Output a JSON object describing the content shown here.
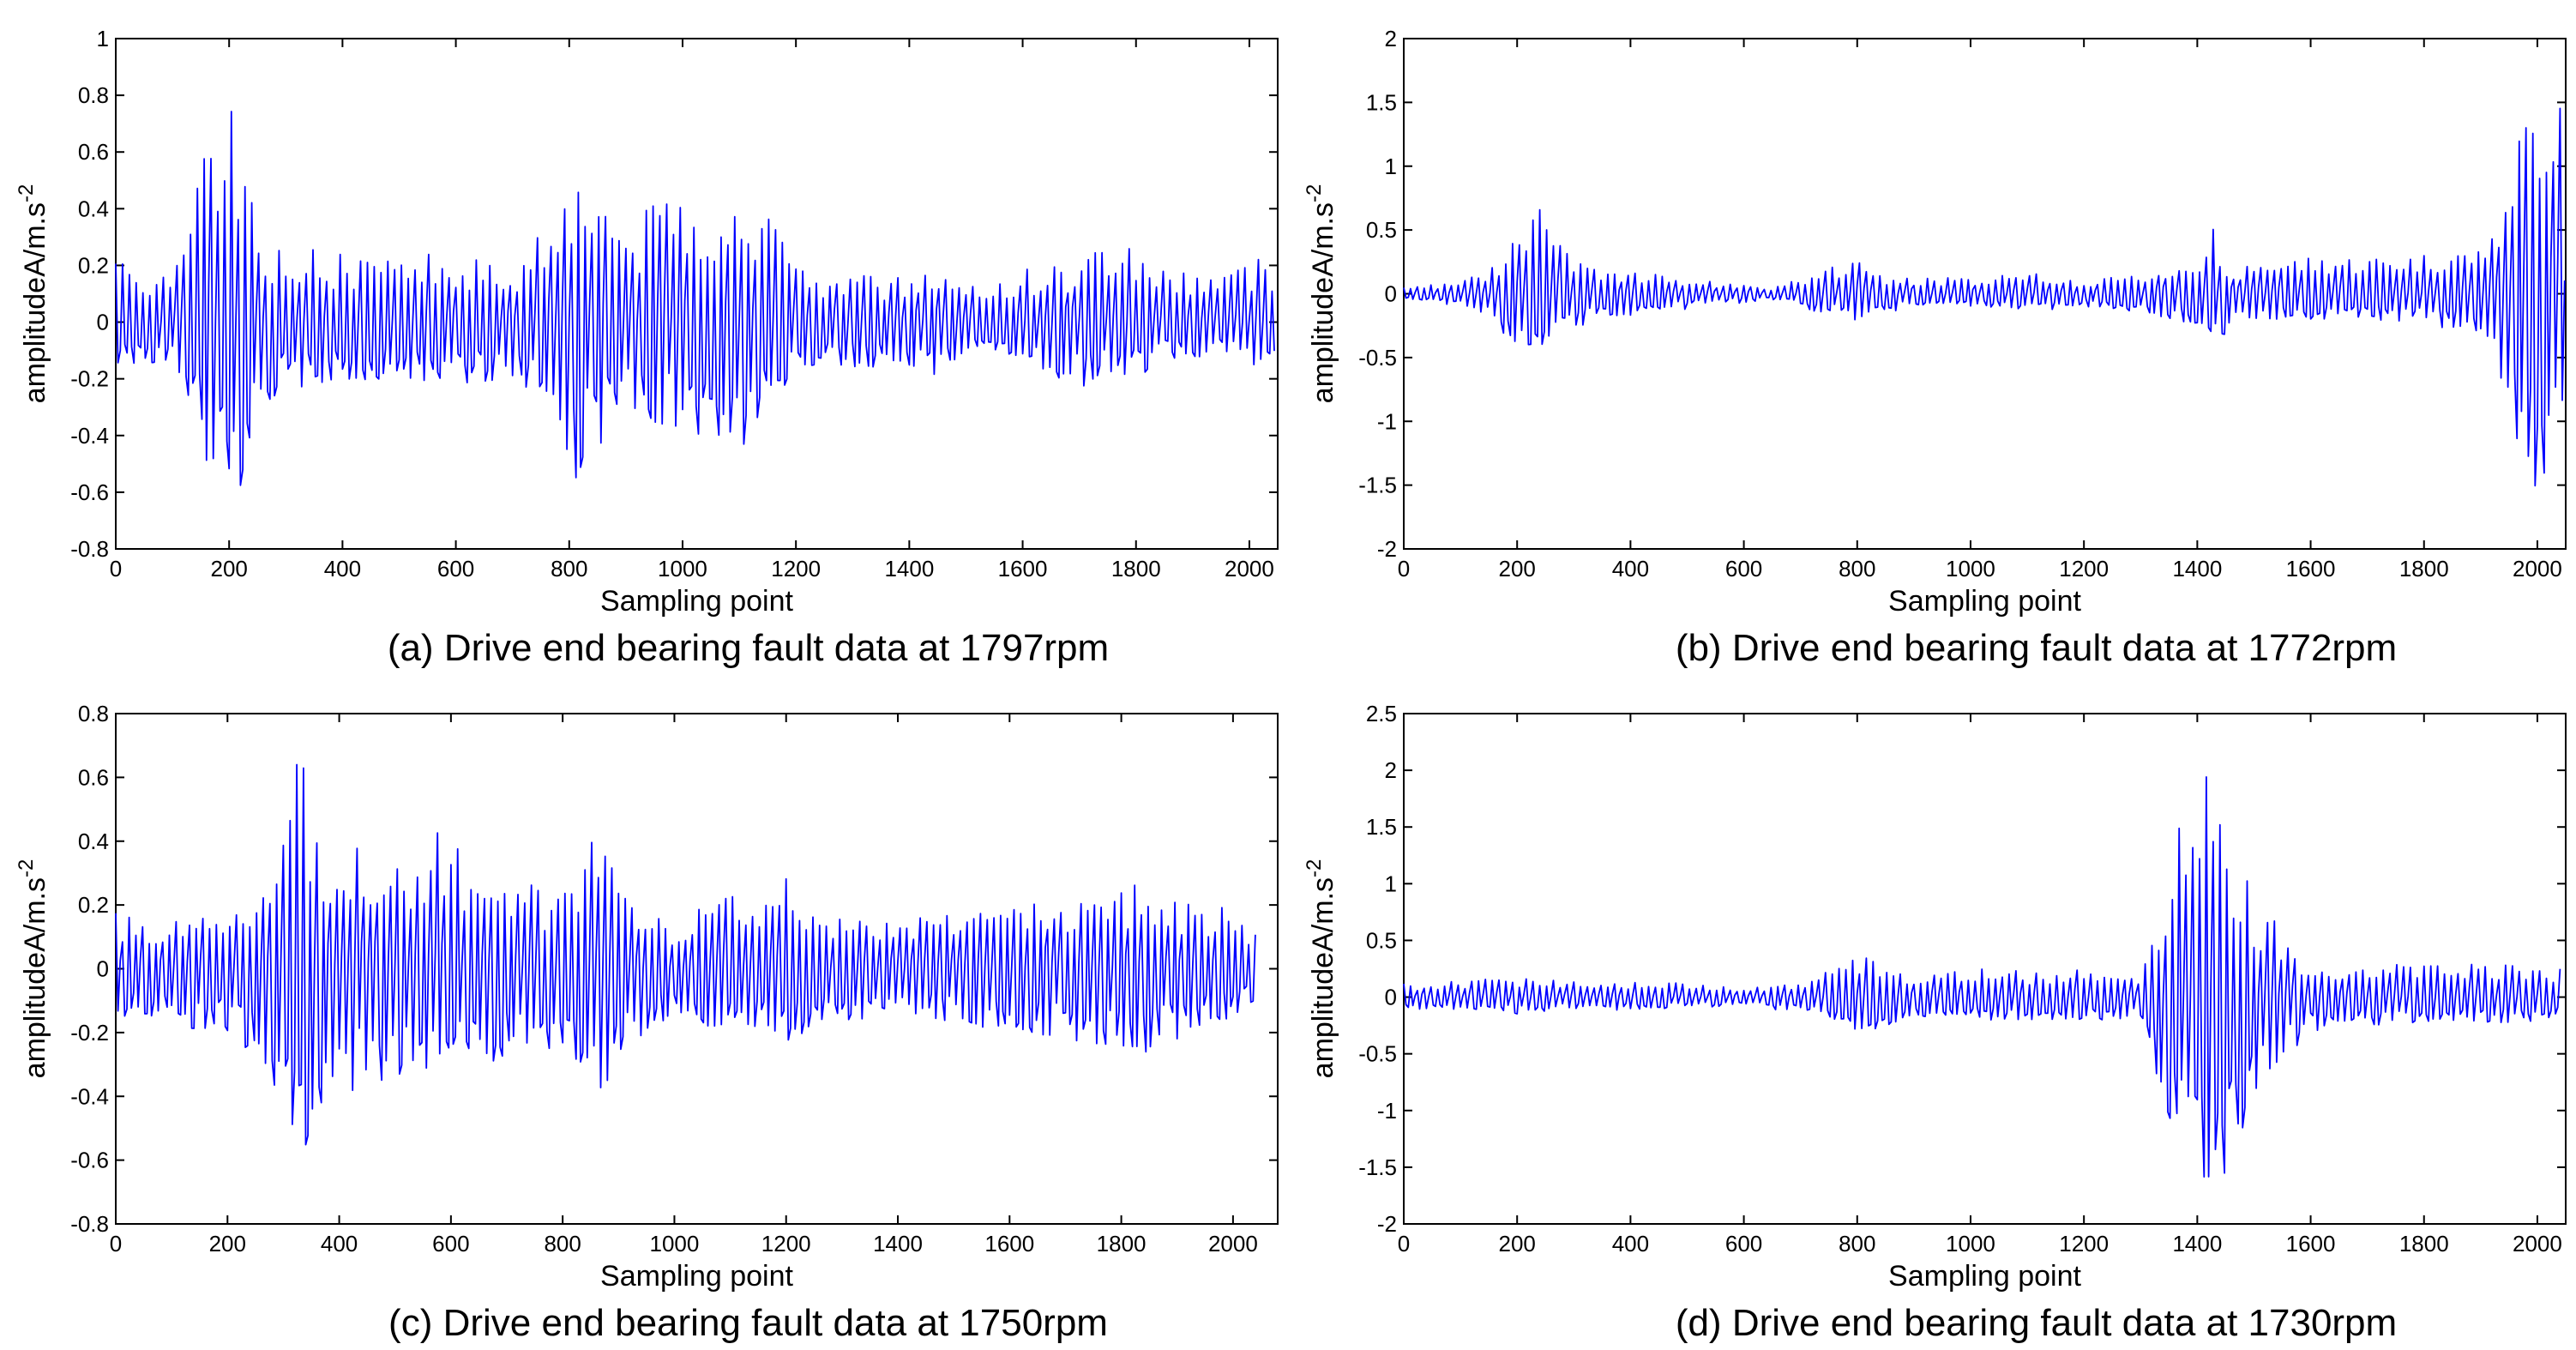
{
  "chart_data": [
    {
      "type": "line",
      "caption": "(a) Drive end bearing fault data at 1797rpm",
      "xlabel": "Sampling point",
      "ylabel_main": "amplitudeA/m.s",
      "ylabel_sup": "-2",
      "xlim": [
        0,
        2050
      ],
      "ylim": [
        -0.8,
        1
      ],
      "xticks": [
        "0",
        "200",
        "400",
        "600",
        "800",
        "1000",
        "1200",
        "1400",
        "1600",
        "1800",
        "2000"
      ],
      "yticks": [
        "-0.8",
        "-0.6",
        "-0.4",
        "-0.2",
        "0",
        "0.2",
        "0.4",
        "0.6",
        "0.8",
        "1"
      ],
      "grid": false,
      "line_color": "#0000ff",
      "series": [
        {
          "x": [
            0,
            60,
            100,
            150,
            170,
            190,
            210,
            230,
            250,
            300,
            400,
            500,
            600,
            700,
            760,
            790,
            800,
            830,
            850,
            880,
            920,
            970,
            1000,
            1050,
            1110,
            1150,
            1200,
            1250,
            1350,
            1450,
            1500,
            1600,
            1700,
            1750,
            1800,
            1850,
            1950,
            2000,
            2030,
            2045
          ],
          "y": [
            0.22,
            0.2,
            0.18,
            0.62,
            0.7,
            0.6,
            0.83,
            0.62,
            0.3,
            0.28,
            0.24,
            0.22,
            0.26,
            0.2,
            0.4,
            0.55,
            0.6,
            0.5,
            0.62,
            0.4,
            0.35,
            0.55,
            0.5,
            0.45,
            0.43,
            0.38,
            0.2,
            0.18,
            0.16,
            0.2,
            0.12,
            0.2,
            0.22,
            0.33,
            0.3,
            0.2,
            0.2,
            0.22,
            0.28,
            0.1
          ]
        },
        {
          "x": [
            0,
            60,
            100,
            150,
            170,
            190,
            210,
            230,
            250,
            300,
            400,
            500,
            600,
            700,
            760,
            790,
            800,
            830,
            850,
            880,
            920,
            970,
            1000,
            1050,
            1110,
            1150,
            1200,
            1250,
            1350,
            1450,
            1500,
            1600,
            1700,
            1750,
            1800,
            1850,
            1950,
            2000,
            2030,
            2045
          ],
          "y": [
            -0.15,
            -0.15,
            -0.18,
            -0.38,
            -0.64,
            -0.45,
            -0.64,
            -0.55,
            -0.3,
            -0.24,
            -0.22,
            -0.2,
            -0.22,
            -0.2,
            -0.3,
            -0.6,
            -0.65,
            -0.5,
            -0.45,
            -0.42,
            -0.3,
            -0.4,
            -0.38,
            -0.45,
            -0.48,
            -0.35,
            -0.2,
            -0.16,
            -0.16,
            -0.2,
            -0.12,
            -0.16,
            -0.25,
            -0.2,
            -0.2,
            -0.14,
            -0.12,
            -0.16,
            -0.22,
            -0.1
          ]
        }
      ]
    },
    {
      "type": "line",
      "caption": "(b) Drive end bearing fault data at 1772rpm",
      "xlabel": "Sampling point",
      "ylabel_main": "amplitudeA/m.s",
      "ylabel_sup": "-2",
      "xlim": [
        0,
        2050
      ],
      "ylim": [
        -2,
        2
      ],
      "xticks": [
        "0",
        "200",
        "400",
        "600",
        "800",
        "1000",
        "1200",
        "1400",
        "1600",
        "1800",
        "2000"
      ],
      "yticks": [
        "-2",
        "-1.5",
        "-1",
        "-0.5",
        "0",
        "0.5",
        "1",
        "1.5",
        "2"
      ],
      "grid": false,
      "line_color": "#0000ff",
      "series": [
        {
          "x": [
            0,
            100,
            150,
            200,
            230,
            250,
            280,
            350,
            500,
            650,
            780,
            810,
            840,
            900,
            1000,
            1100,
            1200,
            1300,
            1400,
            1430,
            1460,
            1500,
            1600,
            1700,
            1800,
            1900,
            1950,
            1980,
            2000,
            2020,
            2040,
            2048
          ],
          "y": [
            0.05,
            0.1,
            0.2,
            0.45,
            0.62,
            0.7,
            0.4,
            0.2,
            0.12,
            0.05,
            0.25,
            0.38,
            0.15,
            0.14,
            0.12,
            0.18,
            0.1,
            0.18,
            0.3,
            0.52,
            0.2,
            0.25,
            0.28,
            0.28,
            0.3,
            0.35,
            1.0,
            1.4,
            1.55,
            1.6,
            1.85,
            1.6
          ]
        },
        {
          "x": [
            0,
            100,
            150,
            200,
            230,
            250,
            280,
            350,
            500,
            650,
            780,
            810,
            840,
            900,
            1000,
            1100,
            1200,
            1300,
            1400,
            1430,
            1460,
            1500,
            1600,
            1700,
            1800,
            1900,
            1950,
            1980,
            2000,
            2020,
            2040,
            2048
          ],
          "y": [
            -0.05,
            -0.1,
            -0.2,
            -0.45,
            -0.6,
            -0.45,
            -0.3,
            -0.2,
            -0.12,
            -0.05,
            -0.2,
            -0.22,
            -0.15,
            -0.12,
            -0.1,
            -0.14,
            -0.1,
            -0.15,
            -0.25,
            -0.52,
            -0.2,
            -0.2,
            -0.2,
            -0.2,
            -0.25,
            -0.3,
            -0.9,
            -1.5,
            -1.6,
            -1.65,
            -1.55,
            -1.4
          ]
        }
      ]
    },
    {
      "type": "line",
      "caption": "(c) Drive end bearing fault data at 1750rpm",
      "xlabel": "Sampling point",
      "ylabel_main": "amplitudeA/m.s",
      "ylabel_sup": "-2",
      "xlim": [
        0,
        2080
      ],
      "ylim": [
        -0.8,
        0.8
      ],
      "xticks": [
        "0",
        "200",
        "400",
        "600",
        "800",
        "1000",
        "1200",
        "1400",
        "1600",
        "1800",
        "2000"
      ],
      "yticks": [
        "-0.8",
        "-0.6",
        "-0.4",
        "-0.2",
        "0",
        "0.2",
        "0.4",
        "0.6",
        "0.8"
      ],
      "grid": false,
      "line_color": "#0000ff",
      "series": [
        {
          "x": [
            0,
            100,
            200,
            280,
            310,
            330,
            350,
            400,
            450,
            500,
            600,
            650,
            700,
            800,
            850,
            880,
            900,
            950,
            1000,
            1100,
            1150,
            1200,
            1250,
            1300,
            1400,
            1500,
            1600,
            1700,
            1800,
            1850,
            1900,
            2000,
            2040
          ],
          "y": [
            0.18,
            0.15,
            0.2,
            0.3,
            0.45,
            0.78,
            0.42,
            0.38,
            0.42,
            0.35,
            0.45,
            0.25,
            0.3,
            0.25,
            0.45,
            0.35,
            0.3,
            0.2,
            0.15,
            0.25,
            0.2,
            0.32,
            0.2,
            0.18,
            0.15,
            0.18,
            0.2,
            0.25,
            0.25,
            0.28,
            0.24,
            0.18,
            0.12
          ]
        },
        {
          "x": [
            0,
            100,
            200,
            280,
            310,
            330,
            350,
            400,
            450,
            500,
            600,
            650,
            700,
            800,
            850,
            880,
            900,
            950,
            1000,
            1100,
            1150,
            1200,
            1250,
            1300,
            1400,
            1500,
            1600,
            1700,
            1800,
            1850,
            1900,
            2000,
            2040
          ],
          "y": [
            -0.15,
            -0.18,
            -0.2,
            -0.35,
            -0.55,
            -0.67,
            -0.5,
            -0.4,
            -0.42,
            -0.35,
            -0.32,
            -0.28,
            -0.3,
            -0.25,
            -0.42,
            -0.38,
            -0.3,
            -0.2,
            -0.15,
            -0.2,
            -0.18,
            -0.25,
            -0.2,
            -0.18,
            -0.15,
            -0.18,
            -0.2,
            -0.22,
            -0.25,
            -0.28,
            -0.22,
            -0.15,
            -0.1
          ]
        }
      ]
    },
    {
      "type": "line",
      "caption": "(d) Drive end bearing fault data at 1730rpm",
      "xlabel": "Sampling point",
      "ylabel_main": "amplitudeA/m.s",
      "ylabel_sup": "-2",
      "xlim": [
        0,
        2050
      ],
      "ylim": [
        -2,
        2.5
      ],
      "xticks": [
        "0",
        "200",
        "400",
        "600",
        "800",
        "1000",
        "1200",
        "1400",
        "1600",
        "1800",
        "2000"
      ],
      "yticks": [
        "-2",
        "-1.5",
        "-1",
        "-0.5",
        "0",
        "0.5",
        "1",
        "1.5",
        "2",
        "2.5"
      ],
      "grid": false,
      "line_color": "#0000ff",
      "series": [
        {
          "x": [
            0,
            100,
            200,
            300,
            400,
            500,
            600,
            700,
            780,
            800,
            900,
            1000,
            1050,
            1100,
            1200,
            1300,
            1340,
            1370,
            1400,
            1420,
            1450,
            1500,
            1550,
            1600,
            1700,
            1800,
            1900,
            2000,
            2040
          ],
          "y": [
            0.12,
            0.15,
            0.18,
            0.15,
            0.15,
            0.12,
            0.1,
            0.12,
            0.3,
            0.38,
            0.2,
            0.25,
            0.25,
            0.22,
            0.28,
            0.2,
            0.9,
            1.55,
            1.95,
            2.05,
            1.5,
            0.9,
            0.6,
            0.3,
            0.3,
            0.3,
            0.32,
            0.3,
            0.25
          ]
        },
        {
          "x": [
            0,
            100,
            200,
            300,
            400,
            500,
            600,
            700,
            780,
            800,
            900,
            1000,
            1050,
            1100,
            1200,
            1300,
            1340,
            1370,
            1400,
            1420,
            1450,
            1500,
            1550,
            1600,
            1700,
            1800,
            1900,
            2000,
            2040
          ],
          "y": [
            -0.12,
            -0.12,
            -0.15,
            -0.12,
            -0.12,
            -0.1,
            -0.1,
            -0.12,
            -0.25,
            -0.32,
            -0.2,
            -0.2,
            -0.22,
            -0.2,
            -0.2,
            -0.2,
            -0.9,
            -1.5,
            -1.85,
            -1.95,
            -1.6,
            -1.0,
            -0.6,
            -0.3,
            -0.25,
            -0.25,
            -0.25,
            -0.22,
            -0.15
          ]
        }
      ]
    }
  ]
}
